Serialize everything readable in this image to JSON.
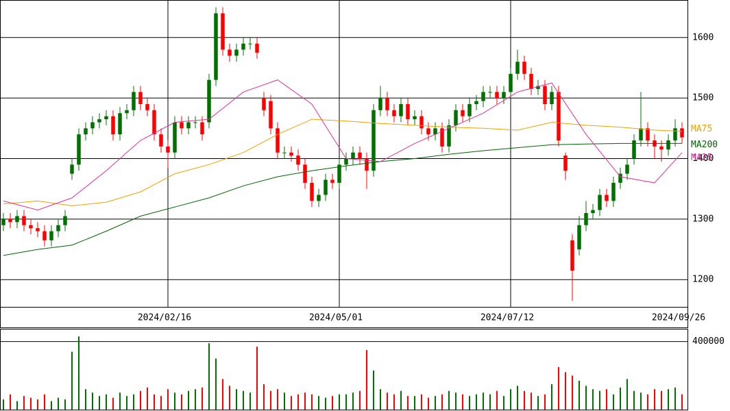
{
  "chart_data": {
    "type": "candlestick",
    "xlim": [
      -0.5,
      99.8
    ],
    "xticks": [
      {
        "value": 24,
        "label": "2024/02/16"
      },
      {
        "value": 49,
        "label": "2024/05/01"
      },
      {
        "value": 74,
        "label": "2024/07/12"
      },
      {
        "value": 99,
        "label": "2024/09/26"
      }
    ],
    "ylim": [
      1155,
      1662
    ],
    "yticks": [
      1200,
      1300,
      1400,
      1500,
      1600
    ],
    "grid": true,
    "up_color": "#007000",
    "down_color": "#ff0000",
    "open": [
      1290,
      1300,
      1295,
      1305,
      1290,
      1285,
      1280,
      1265,
      1280,
      1290,
      1375,
      1390,
      1440,
      1450,
      1460,
      1465,
      1470,
      1440,
      1475,
      1480,
      1510,
      1490,
      1480,
      1440,
      1420,
      1410,
      1460,
      1450,
      1460,
      1460,
      1460,
      1530,
      1640,
      1580,
      1570,
      1580,
      1590,
      1590,
      1500,
      1495,
      1450,
      1410,
      1410,
      1405,
      1390,
      1360,
      1330,
      1340,
      1365,
      1360,
      1390,
      1400,
      1410,
      1400,
      1380,
      1480,
      1500,
      1480,
      1470,
      1490,
      1465,
      1470,
      1450,
      1440,
      1450,
      1420,
      1455,
      1480,
      1470,
      1490,
      1495,
      1510,
      1510,
      1500,
      1510,
      1540,
      1560,
      1540,
      1515,
      1520,
      1490,
      1510,
      1405,
      1265,
      1250,
      1290,
      1310,
      1315,
      1340,
      1330,
      1360,
      1375,
      1400,
      1430,
      1450,
      1430,
      1420,
      1415,
      1430,
      1450
    ],
    "high": [
      1310,
      1310,
      1315,
      1315,
      1300,
      1295,
      1290,
      1290,
      1300,
      1315,
      1400,
      1450,
      1460,
      1470,
      1475,
      1480,
      1480,
      1485,
      1490,
      1520,
      1520,
      1500,
      1490,
      1450,
      1430,
      1470,
      1470,
      1470,
      1470,
      1470,
      1540,
      1650,
      1650,
      1590,
      1590,
      1600,
      1600,
      1600,
      1510,
      1505,
      1460,
      1420,
      1420,
      1415,
      1400,
      1370,
      1350,
      1375,
      1375,
      1400,
      1410,
      1420,
      1420,
      1410,
      1490,
      1520,
      1510,
      1490,
      1500,
      1500,
      1480,
      1480,
      1460,
      1460,
      1460,
      1465,
      1490,
      1490,
      1500,
      1505,
      1520,
      1520,
      1520,
      1520,
      1550,
      1580,
      1570,
      1550,
      1530,
      1530,
      1520,
      1520,
      1410,
      1275,
      1305,
      1330,
      1325,
      1350,
      1350,
      1370,
      1385,
      1400,
      1440,
      1510,
      1460,
      1440,
      1430,
      1440,
      1465,
      1460
    ],
    "low": [
      1280,
      1285,
      1285,
      1280,
      1275,
      1270,
      1255,
      1255,
      1270,
      1280,
      1365,
      1380,
      1430,
      1440,
      1450,
      1455,
      1430,
      1430,
      1465,
      1470,
      1480,
      1470,
      1430,
      1410,
      1385,
      1400,
      1440,
      1440,
      1450,
      1430,
      1450,
      1520,
      1570,
      1560,
      1560,
      1570,
      1580,
      1565,
      1470,
      1440,
      1400,
      1400,
      1395,
      1380,
      1350,
      1320,
      1320,
      1330,
      1350,
      1350,
      1380,
      1390,
      1390,
      1350,
      1370,
      1470,
      1470,
      1460,
      1460,
      1455,
      1455,
      1440,
      1430,
      1430,
      1410,
      1410,
      1445,
      1460,
      1460,
      1480,
      1485,
      1500,
      1490,
      1490,
      1500,
      1530,
      1530,
      1505,
      1505,
      1480,
      1480,
      1420,
      1365,
      1165,
      1240,
      1280,
      1300,
      1305,
      1320,
      1320,
      1350,
      1365,
      1390,
      1420,
      1420,
      1400,
      1395,
      1405,
      1420,
      1425
    ],
    "close": [
      1300,
      1295,
      1305,
      1290,
      1285,
      1280,
      1265,
      1280,
      1290,
      1305,
      1390,
      1440,
      1450,
      1460,
      1465,
      1470,
      1440,
      1475,
      1480,
      1510,
      1490,
      1480,
      1440,
      1420,
      1410,
      1460,
      1450,
      1460,
      1460,
      1440,
      1530,
      1640,
      1580,
      1570,
      1580,
      1590,
      1590,
      1575,
      1480,
      1450,
      1410,
      1410,
      1405,
      1390,
      1360,
      1330,
      1340,
      1365,
      1360,
      1390,
      1400,
      1410,
      1400,
      1380,
      1480,
      1500,
      1480,
      1470,
      1490,
      1465,
      1470,
      1450,
      1440,
      1450,
      1420,
      1455,
      1480,
      1470,
      1490,
      1495,
      1510,
      1510,
      1500,
      1510,
      1540,
      1560,
      1540,
      1515,
      1520,
      1490,
      1510,
      1430,
      1380,
      1215,
      1290,
      1310,
      1315,
      1340,
      1330,
      1360,
      1375,
      1390,
      1430,
      1450,
      1430,
      1420,
      1415,
      1430,
      1450,
      1435
    ],
    "series": [
      {
        "name": "MA75",
        "color": "#f0a000",
        "x": [
          0,
          5,
          10,
          15,
          20,
          25,
          30,
          35,
          40,
          45,
          50,
          55,
          60,
          65,
          70,
          75,
          80,
          85,
          90,
          95,
          99
        ],
        "values": [
          1325,
          1330,
          1322,
          1328,
          1345,
          1375,
          1390,
          1410,
          1440,
          1465,
          1462,
          1458,
          1455,
          1452,
          1450,
          1447,
          1460,
          1455,
          1452,
          1447,
          1445
        ]
      },
      {
        "name": "MA200",
        "color": "#006400",
        "x": [
          0,
          5,
          10,
          15,
          20,
          25,
          30,
          35,
          40,
          45,
          50,
          55,
          60,
          65,
          70,
          75,
          80,
          85,
          90,
          95,
          99
        ],
        "values": [
          1240,
          1250,
          1257,
          1280,
          1305,
          1320,
          1335,
          1355,
          1370,
          1380,
          1388,
          1395,
          1400,
          1407,
          1413,
          1418,
          1423,
          1424,
          1425,
          1425,
          1425
        ]
      },
      {
        "name": "MA25",
        "color": "#e0309a",
        "x": [
          0,
          5,
          10,
          15,
          20,
          25,
          30,
          35,
          40,
          45,
          50,
          55,
          60,
          65,
          70,
          75,
          80,
          85,
          90,
          95,
          99
        ],
        "values": [
          1330,
          1315,
          1335,
          1380,
          1430,
          1460,
          1465,
          1510,
          1530,
          1490,
          1400,
          1395,
          1425,
          1450,
          1475,
          1510,
          1525,
          1440,
          1370,
          1360,
          1410
        ]
      }
    ],
    "volume": {
      "ylim": [
        0,
        475000
      ],
      "yticks": [
        400000
      ],
      "values": [
        60000,
        90000,
        50000,
        80000,
        70000,
        60000,
        90000,
        50000,
        70000,
        60000,
        340000,
        430000,
        120000,
        100000,
        80000,
        90000,
        70000,
        100000,
        80000,
        90000,
        110000,
        130000,
        90000,
        80000,
        120000,
        100000,
        90000,
        110000,
        120000,
        130000,
        390000,
        300000,
        180000,
        140000,
        120000,
        110000,
        100000,
        370000,
        150000,
        110000,
        120000,
        100000,
        80000,
        90000,
        100000,
        90000,
        80000,
        70000,
        80000,
        90000,
        90000,
        100000,
        110000,
        350000,
        230000,
        120000,
        100000,
        90000,
        110000,
        80000,
        80000,
        90000,
        70000,
        80000,
        90000,
        110000,
        100000,
        90000,
        80000,
        90000,
        100000,
        90000,
        110000,
        80000,
        120000,
        140000,
        110000,
        100000,
        80000,
        90000,
        150000,
        250000,
        220000,
        200000,
        170000,
        140000,
        120000,
        110000,
        120000,
        90000,
        130000,
        180000,
        110000,
        100000,
        90000,
        120000,
        110000,
        120000,
        130000,
        90000
      ]
    }
  }
}
